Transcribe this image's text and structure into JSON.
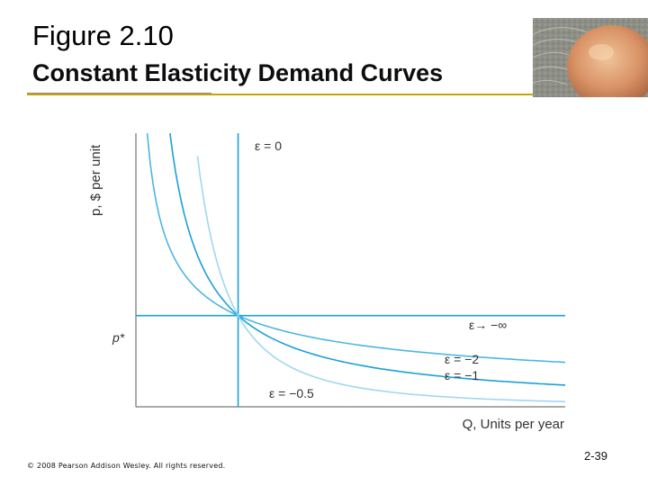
{
  "slide": {
    "title": "Figure 2.10",
    "subtitle": "Constant Elasticity Demand Curves",
    "copyright": "© 2008 Pearson Addison Wesley. All rights reserved.",
    "number": "2-39",
    "decor_icon": "sandstone-rock-photo"
  },
  "colors": {
    "accent_rule": "#c9a400",
    "curve_dark": "#1aa0d8",
    "curve_mid": "#4cb6e2",
    "curve_light": "#9fd8ee",
    "axis": "#555555"
  },
  "chart_data": {
    "type": "line",
    "title": "",
    "xlabel": "Q, Units per year",
    "ylabel": "p, $ per unit",
    "reference": {
      "p_label": "p*",
      "q_star": 1,
      "p_star": 1
    },
    "xlim": [
      0,
      4.2
    ],
    "ylim": [
      0,
      3
    ],
    "grid": false,
    "series": [
      {
        "name": "ε = 0",
        "elasticity": 0,
        "shape": "vertical"
      },
      {
        "name": "ε→ −∞",
        "elasticity": "-infinity",
        "shape": "horizontal"
      },
      {
        "name": "ε = −2",
        "elasticity": -2,
        "shape": "curve"
      },
      {
        "name": "ε = −1",
        "elasticity": -1,
        "shape": "curve"
      },
      {
        "name": "ε = −0.5",
        "elasticity": -0.5,
        "shape": "curve"
      }
    ]
  }
}
